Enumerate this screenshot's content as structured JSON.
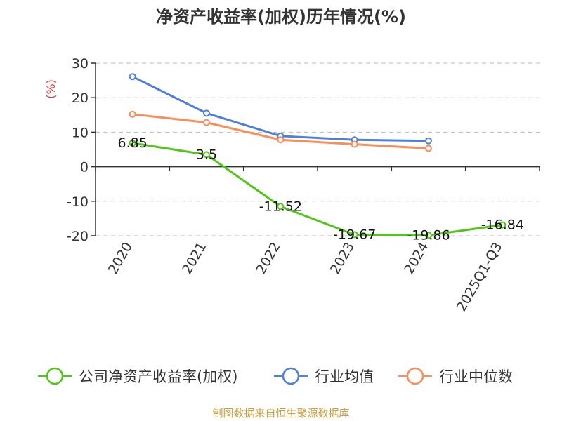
{
  "chart_data": {
    "type": "line",
    "title": "净资产收益率(加权)历年情况(%)",
    "ylabel": "(%)",
    "xlabel": "",
    "categories": [
      "2020",
      "2021",
      "2022",
      "2023",
      "2024",
      "2025Q1-Q3"
    ],
    "ylim": [
      -20,
      30
    ],
    "yticks": [
      30,
      20,
      10,
      0,
      -10,
      -20
    ],
    "grid": "horizontal-dashed",
    "legend_position": "bottom",
    "series": [
      {
        "name": "公司净资产收益率(加权)",
        "color": "#52c41a",
        "values": [
          6.85,
          3.5,
          -11.52,
          -19.67,
          -19.86,
          -16.84
        ],
        "labels": [
          "6.85",
          "3.5",
          "-11.52",
          "-19.67",
          "-19.86",
          "-16.84"
        ]
      },
      {
        "name": "行业均值",
        "color": "#4e7fdd",
        "values": [
          26.1,
          15.5,
          8.9,
          7.8,
          7.5,
          null
        ]
      },
      {
        "name": "行业中位数",
        "color": "#f98e5a",
        "values": [
          15.2,
          12.8,
          7.8,
          6.5,
          5.3,
          null
        ]
      }
    ]
  },
  "colors": {
    "axis": "#333333",
    "grid": "#bbbbbb",
    "ylabel": "#e03a3a",
    "source": "#c8a040"
  },
  "source_note": "制图数据来自恒生聚源数据库"
}
